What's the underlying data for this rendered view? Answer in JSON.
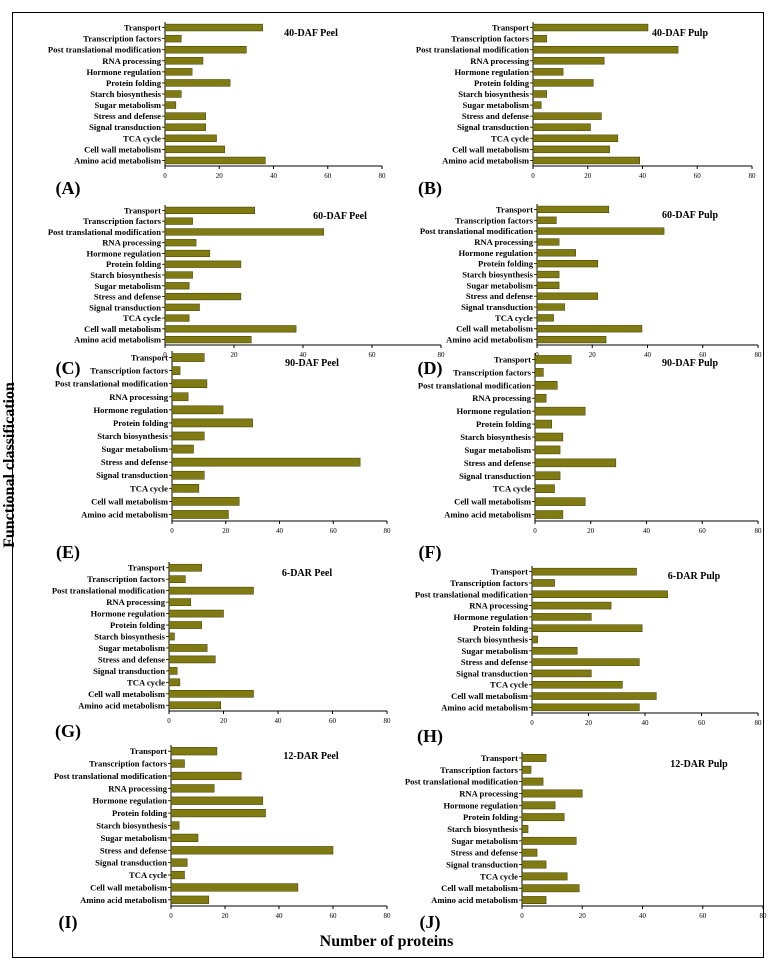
{
  "figure": {
    "y_axis_label": "Functional classification",
    "x_axis_label": "Number of proteins",
    "bar_color": "#7f7a12"
  },
  "chart_data": [
    {
      "panel": "(A)",
      "title": "40-DAF Peel",
      "type": "bar",
      "orientation": "horizontal",
      "categories": [
        "Transport",
        "Transcription factors",
        "Post translational modification",
        "RNA processing",
        "Hormone regulation",
        "Protein folding",
        "Starch biosynthesis",
        "Sugar metabolism",
        "Stress and defense",
        "Signal transduction",
        "TCA cycle",
        "Cell wall metabolism",
        "Amino acid metabolism"
      ],
      "values": [
        36,
        6,
        30,
        14,
        10,
        24,
        6,
        4,
        15,
        15,
        19,
        22,
        37
      ],
      "xlim": [
        0,
        80
      ],
      "xticks": [
        0,
        20,
        40,
        60,
        80
      ]
    },
    {
      "panel": "(B)",
      "title": "40-DAF Pulp",
      "type": "bar",
      "orientation": "horizontal",
      "categories": [
        "Transport",
        "Transcription factors",
        "Post translational modification",
        "RNA processing",
        "Hormone regulation",
        "Protein folding",
        "Starch biosynthesis",
        "Sugar metabolism",
        "Stress and defense",
        "Signal transduction",
        "TCA cycle",
        "Cell wall metabolism",
        "Amino acid metabolism"
      ],
      "values": [
        42,
        5,
        53,
        26,
        11,
        22,
        5,
        3,
        25,
        21,
        31,
        28,
        39
      ],
      "xlim": [
        0,
        80
      ],
      "xticks": [
        0,
        20,
        40,
        60,
        80
      ]
    },
    {
      "panel": "(C)",
      "title": "60-DAF Peel",
      "type": "bar",
      "orientation": "horizontal",
      "categories": [
        "Transport",
        "Transcription factors",
        "Post translational modification",
        "RNA processing",
        "Hormone regulation",
        "Protein folding",
        "Starch biosynthesis",
        "Sugar metabolism",
        "Stress and defense",
        "Signal transduction",
        "TCA cycle",
        "Cell wall metabolism",
        "Amino acid metabolism"
      ],
      "values": [
        26,
        8,
        46,
        9,
        13,
        22,
        8,
        7,
        22,
        10,
        7,
        38,
        25
      ],
      "xlim": [
        0,
        80
      ],
      "xticks": [
        0,
        20,
        40,
        60,
        80
      ]
    },
    {
      "panel": "(D)",
      "title": "60-DAF Pulp",
      "type": "bar",
      "orientation": "horizontal",
      "categories": [
        "Transport",
        "Transcription factors",
        "Post translational modification",
        "RNA processing",
        "Hormone regulation",
        "Protein folding",
        "Starch biosynthesis",
        "Sugar metabolism",
        "Stress and defense",
        "Signal transduction",
        "TCA cycle",
        "Cell wall metabolism",
        "Amino acid metabolism"
      ],
      "values": [
        26,
        7,
        46,
        8,
        14,
        22,
        8,
        8,
        22,
        10,
        6,
        38,
        25
      ],
      "xlim": [
        0,
        80
      ],
      "xticks": [
        0,
        20,
        40,
        60,
        80
      ]
    },
    {
      "panel": "(E)",
      "title": "90-DAF Peel",
      "type": "bar",
      "orientation": "horizontal",
      "categories": [
        "Transport",
        "Transcription factors",
        "Post translational modification",
        "RNA processing",
        "Hormone regulation",
        "Protein folding",
        "Starch biosynthesis",
        "Sugar metabolism",
        "Stress and defense",
        "Signal transduction",
        "TCA cycle",
        "Cell wall metabolism",
        "Amino acid metabolism"
      ],
      "values": [
        12,
        3,
        13,
        6,
        19,
        30,
        12,
        8,
        70,
        12,
        10,
        25,
        21
      ],
      "xlim": [
        0,
        80
      ],
      "xticks": [
        0,
        20,
        40,
        60,
        80
      ]
    },
    {
      "panel": "(F)",
      "title": "90-DAF Pulp",
      "type": "bar",
      "orientation": "horizontal",
      "categories": [
        "Transport",
        "Transcription factors",
        "Post translational modification",
        "RNA processing",
        "Hormone regulation",
        "Protein folding",
        "Starch biosynthesis",
        "Sugar metabolism",
        "Stress and defense",
        "Signal transduction",
        "TCA cycle",
        "Cell wall metabolism",
        "Amino acid metabolism"
      ],
      "values": [
        13,
        3,
        8,
        4,
        18,
        6,
        10,
        9,
        29,
        9,
        7,
        18,
        10
      ],
      "xlim": [
        0,
        80
      ],
      "xticks": [
        0,
        20,
        40,
        60,
        80
      ]
    },
    {
      "panel": "(G)",
      "title": "6-DAR Peel",
      "type": "bar",
      "orientation": "horizontal",
      "categories": [
        "Transport",
        "Transcription factors",
        "Post translational modification",
        "RNA processing",
        "Hormone regulation",
        "Protein folding",
        "Starch biosynthesis",
        "Sugar metabolism",
        "Stress and defense",
        "Signal transduction",
        "TCA cycle",
        "Cell wall metabolism",
        "Amino acid metabolism"
      ],
      "values": [
        12,
        6,
        31,
        8,
        20,
        12,
        2,
        14,
        17,
        3,
        4,
        31,
        19
      ],
      "xlim": [
        0,
        80
      ],
      "xticks": [
        0,
        20,
        40,
        60,
        80
      ]
    },
    {
      "panel": "(H)",
      "title": "6-DAR Pulp",
      "type": "bar",
      "orientation": "horizontal",
      "categories": [
        "Transport",
        "Transcription factors",
        "Post translational modification",
        "RNA processing",
        "Hormone regulation",
        "Protein folding",
        "Starch biosynthesis",
        "Sugar metabolism",
        "Stress and defense",
        "Signal transduction",
        "TCA cycle",
        "Cell wall metabolism",
        "Amino acid metabolism"
      ],
      "values": [
        37,
        8,
        48,
        28,
        21,
        39,
        2,
        16,
        38,
        21,
        32,
        44,
        38
      ],
      "xlim": [
        0,
        80
      ],
      "xticks": [
        0,
        20,
        40,
        60,
        80
      ]
    },
    {
      "panel": "(I)",
      "title": "12-DAR Peel",
      "type": "bar",
      "orientation": "horizontal",
      "categories": [
        "Transport",
        "Transcription factors",
        "Post translational modification",
        "RNA processing",
        "Hormone regulation",
        "Protein folding",
        "Starch biosynthesis",
        "Sugar metabolism",
        "Stress and defense",
        "Signal transduction",
        "TCA cycle",
        "Cell wall metabolism",
        "Amino acid metabolism"
      ],
      "values": [
        17,
        5,
        26,
        16,
        34,
        35,
        3,
        10,
        60,
        6,
        5,
        47,
        14
      ],
      "xlim": [
        0,
        80
      ],
      "xticks": [
        0,
        20,
        40,
        60,
        80
      ]
    },
    {
      "panel": "(J)",
      "title": "12-DAR Pulp",
      "type": "bar",
      "orientation": "horizontal",
      "categories": [
        "Transport",
        "Transcription factors",
        "Post translational modification",
        "RNA processing",
        "Hormone regulation",
        "Protein folding",
        "Starch biosynthesis",
        "Sugar metabolism",
        "Stress and defense",
        "Signal transduction",
        "TCA cycle",
        "Cell wall metabolism",
        "Amino acid metabolism"
      ],
      "values": [
        8,
        3,
        7,
        20,
        11,
        14,
        2,
        18,
        5,
        8,
        15,
        19,
        8
      ],
      "xlim": [
        0,
        80
      ],
      "xticks": [
        0,
        20,
        40,
        60,
        80
      ]
    }
  ]
}
